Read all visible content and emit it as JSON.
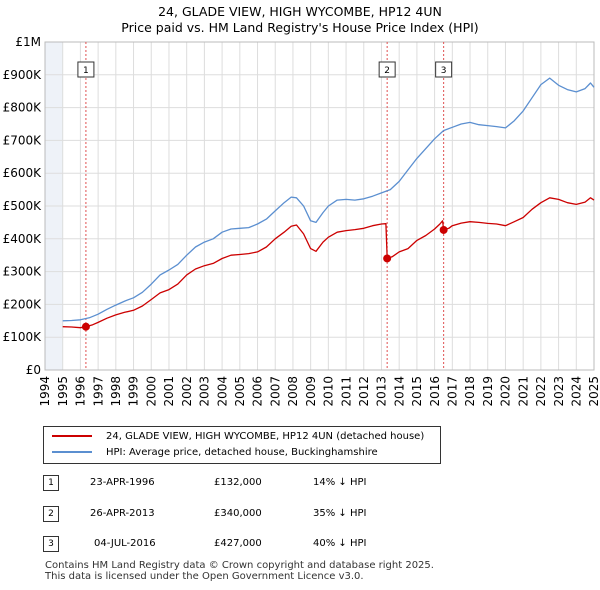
{
  "title": "24, GLADE VIEW, HIGH WYCOMBE, HP12 4UN",
  "subtitle": "Price paid vs. HM Land Registry's House Price Index (HPI)",
  "colors": {
    "property": "#cc0000",
    "hpi": "#5b8fd0",
    "marker_line": "#e05050",
    "grid": "#dddddd",
    "shade": "#eef2f8"
  },
  "chart_data": {
    "type": "line",
    "title": "24, GLADE VIEW, HIGH WYCOMBE, HP12 4UN",
    "xlim": [
      1994.0,
      2025.0
    ],
    "ylim": [
      0,
      1000000
    ],
    "yticks": [
      0,
      100000,
      200000,
      300000,
      400000,
      500000,
      600000,
      700000,
      800000,
      900000,
      1000000
    ],
    "ytick_labels": [
      "£0",
      "£100K",
      "£200K",
      "£300K",
      "£400K",
      "£500K",
      "£600K",
      "£700K",
      "£800K",
      "£900K",
      "£1M"
    ],
    "xticks": [
      1994,
      1995,
      1996,
      1997,
      1998,
      1999,
      2000,
      2001,
      2002,
      2003,
      2004,
      2005,
      2006,
      2007,
      2008,
      2009,
      2010,
      2011,
      2012,
      2013,
      2014,
      2015,
      2016,
      2017,
      2018,
      2019,
      2020,
      2021,
      2022,
      2023,
      2024,
      2025
    ],
    "data_start": 1995.0,
    "data_end": 2025.0,
    "series": [
      {
        "name": "24, GLADE VIEW, HIGH WYCOMBE, HP12 4UN (detached house)",
        "color": "#cc0000",
        "points": [
          [
            1995.0,
            132000
          ],
          [
            1995.5,
            131000
          ],
          [
            1996.0,
            129000
          ],
          [
            1996.31,
            132000
          ],
          [
            1996.7,
            138000
          ],
          [
            1997.0,
            145000
          ],
          [
            1997.5,
            158000
          ],
          [
            1998.0,
            168000
          ],
          [
            1998.5,
            176000
          ],
          [
            1999.0,
            182000
          ],
          [
            1999.5,
            195000
          ],
          [
            2000.0,
            215000
          ],
          [
            2000.5,
            235000
          ],
          [
            2001.0,
            245000
          ],
          [
            2001.5,
            262000
          ],
          [
            2002.0,
            290000
          ],
          [
            2002.5,
            308000
          ],
          [
            2003.0,
            318000
          ],
          [
            2003.5,
            325000
          ],
          [
            2004.0,
            340000
          ],
          [
            2004.5,
            350000
          ],
          [
            2005.0,
            352000
          ],
          [
            2005.5,
            355000
          ],
          [
            2006.0,
            360000
          ],
          [
            2006.5,
            375000
          ],
          [
            2007.0,
            400000
          ],
          [
            2007.5,
            420000
          ],
          [
            2007.9,
            438000
          ],
          [
            2008.2,
            442000
          ],
          [
            2008.6,
            415000
          ],
          [
            2009.0,
            370000
          ],
          [
            2009.3,
            362000
          ],
          [
            2009.7,
            390000
          ],
          [
            2010.0,
            405000
          ],
          [
            2010.5,
            420000
          ],
          [
            2011.0,
            425000
          ],
          [
            2011.5,
            428000
          ],
          [
            2012.0,
            432000
          ],
          [
            2012.5,
            440000
          ],
          [
            2013.0,
            445000
          ],
          [
            2013.25,
            446000
          ],
          [
            2013.32,
            340000
          ],
          [
            2013.6,
            345000
          ],
          [
            2014.0,
            360000
          ],
          [
            2014.5,
            370000
          ],
          [
            2015.0,
            395000
          ],
          [
            2015.5,
            410000
          ],
          [
            2016.0,
            430000
          ],
          [
            2016.3,
            445000
          ],
          [
            2016.45,
            455000
          ],
          [
            2016.51,
            427000
          ],
          [
            2016.8,
            432000
          ],
          [
            2017.0,
            440000
          ],
          [
            2017.5,
            448000
          ],
          [
            2018.0,
            452000
          ],
          [
            2018.5,
            450000
          ],
          [
            2019.0,
            447000
          ],
          [
            2019.5,
            445000
          ],
          [
            2020.0,
            440000
          ],
          [
            2020.5,
            452000
          ],
          [
            2021.0,
            465000
          ],
          [
            2021.5,
            490000
          ],
          [
            2022.0,
            510000
          ],
          [
            2022.5,
            525000
          ],
          [
            2023.0,
            520000
          ],
          [
            2023.5,
            510000
          ],
          [
            2024.0,
            505000
          ],
          [
            2024.5,
            512000
          ],
          [
            2024.8,
            525000
          ],
          [
            2025.0,
            518000
          ]
        ]
      },
      {
        "name": "HPI: Average price, detached house, Buckinghamshire",
        "color": "#5b8fd0",
        "points": [
          [
            1995.0,
            150000
          ],
          [
            1995.5,
            151000
          ],
          [
            1996.0,
            153000
          ],
          [
            1996.5,
            159000
          ],
          [
            1997.0,
            170000
          ],
          [
            1997.5,
            185000
          ],
          [
            1998.0,
            198000
          ],
          [
            1998.5,
            210000
          ],
          [
            1999.0,
            220000
          ],
          [
            1999.5,
            237000
          ],
          [
            2000.0,
            262000
          ],
          [
            2000.5,
            290000
          ],
          [
            2001.0,
            305000
          ],
          [
            2001.5,
            322000
          ],
          [
            2002.0,
            350000
          ],
          [
            2002.5,
            375000
          ],
          [
            2003.0,
            390000
          ],
          [
            2003.5,
            400000
          ],
          [
            2004.0,
            420000
          ],
          [
            2004.5,
            430000
          ],
          [
            2005.0,
            432000
          ],
          [
            2005.5,
            434000
          ],
          [
            2006.0,
            445000
          ],
          [
            2006.5,
            460000
          ],
          [
            2007.0,
            485000
          ],
          [
            2007.5,
            510000
          ],
          [
            2007.9,
            527000
          ],
          [
            2008.2,
            525000
          ],
          [
            2008.6,
            500000
          ],
          [
            2009.0,
            455000
          ],
          [
            2009.3,
            450000
          ],
          [
            2009.7,
            480000
          ],
          [
            2010.0,
            500000
          ],
          [
            2010.5,
            518000
          ],
          [
            2011.0,
            520000
          ],
          [
            2011.5,
            518000
          ],
          [
            2012.0,
            522000
          ],
          [
            2012.5,
            530000
          ],
          [
            2013.0,
            540000
          ],
          [
            2013.5,
            550000
          ],
          [
            2014.0,
            575000
          ],
          [
            2014.5,
            610000
          ],
          [
            2015.0,
            645000
          ],
          [
            2015.5,
            675000
          ],
          [
            2016.0,
            705000
          ],
          [
            2016.5,
            730000
          ],
          [
            2017.0,
            740000
          ],
          [
            2017.5,
            750000
          ],
          [
            2018.0,
            755000
          ],
          [
            2018.5,
            748000
          ],
          [
            2019.0,
            745000
          ],
          [
            2019.5,
            742000
          ],
          [
            2020.0,
            738000
          ],
          [
            2020.5,
            760000
          ],
          [
            2021.0,
            790000
          ],
          [
            2021.5,
            830000
          ],
          [
            2022.0,
            870000
          ],
          [
            2022.5,
            890000
          ],
          [
            2023.0,
            868000
          ],
          [
            2023.5,
            855000
          ],
          [
            2024.0,
            848000
          ],
          [
            2024.5,
            858000
          ],
          [
            2024.8,
            875000
          ],
          [
            2025.0,
            862000
          ]
        ]
      }
    ],
    "transactions": [
      {
        "label": "1",
        "x": 1996.31,
        "y": 132000,
        "date": "23-APR-1996",
        "price": "£132,000",
        "hpi": "14% ↓ HPI"
      },
      {
        "label": "2",
        "x": 2013.32,
        "y": 340000,
        "date": "26-APR-2013",
        "price": "£340,000",
        "hpi": "35% ↓ HPI"
      },
      {
        "label": "3",
        "x": 2016.51,
        "y": 427000,
        "date": "04-JUL-2016",
        "price": "£427,000",
        "hpi": "40% ↓ HPI"
      }
    ]
  },
  "legend": {
    "property": "24, GLADE VIEW, HIGH WYCOMBE, HP12 4UN (detached house)",
    "hpi": "HPI: Average price, detached house, Buckinghamshire"
  },
  "footer": {
    "line1": "Contains HM Land Registry data © Crown copyright and database right 2025.",
    "line2": "This data is licensed under the Open Government Licence v3.0."
  }
}
